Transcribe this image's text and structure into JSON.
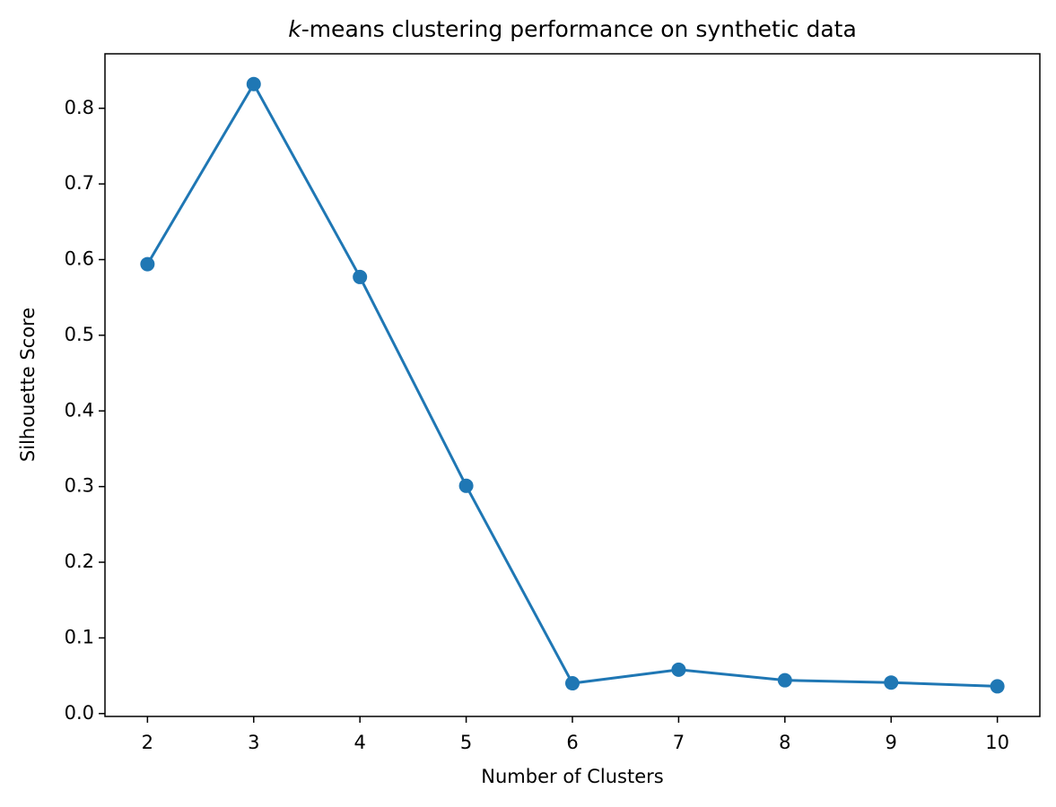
{
  "chart_data": {
    "type": "line",
    "title": "k-means clustering performance on synthetic data",
    "xlabel": "Number of Clusters",
    "ylabel": "Silhouette Score",
    "x": [
      2,
      3,
      4,
      5,
      6,
      7,
      8,
      9,
      10
    ],
    "series": [
      {
        "name": "Silhouette Score",
        "color": "#1f77b4",
        "values": [
          0.594,
          0.832,
          0.577,
          0.301,
          0.04,
          0.058,
          0.044,
          0.041,
          0.036
        ]
      }
    ],
    "xlim": [
      1.6,
      10.4
    ],
    "ylim": [
      -0.0038,
      0.872
    ],
    "xticks": [
      2,
      3,
      4,
      5,
      6,
      7,
      8,
      9,
      10
    ],
    "yticks": [
      {
        "value": 0,
        "label": "0.0"
      },
      0.1,
      0.2,
      0.3,
      0.4,
      0.5,
      0.6,
      0.7,
      0.8
    ],
    "grid": false,
    "markers": true
  }
}
